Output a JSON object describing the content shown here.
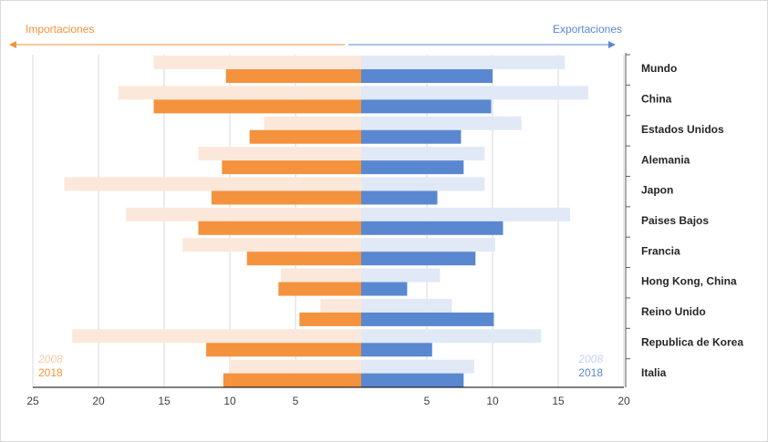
{
  "chart_data": {
    "type": "butterfly-bar",
    "categories": [
      "Mundo",
      "China",
      "Estados Unidos",
      "Alemania",
      "Japon",
      "Paises Bajos",
      "Francia",
      "Hong Kong, China",
      "Reino Unido",
      "Republica de Korea",
      "Italia"
    ],
    "left": {
      "label": "Importaciones",
      "color": "#f4923d",
      "xlim": [
        25,
        0
      ],
      "xticks": [
        25,
        20,
        15,
        10,
        5
      ],
      "series": [
        {
          "name": "2008",
          "color": "#fce8da",
          "values": [
            15.8,
            18.5,
            7.4,
            12.4,
            22.6,
            17.9,
            13.6,
            6.1,
            3.1,
            22.0,
            10
          ]
        },
        {
          "name": "2018",
          "color": "#f4923d",
          "values": [
            10.3,
            15.8,
            8.5,
            10.6,
            11.4,
            12.4,
            8.7,
            6.3,
            4.7,
            11.8,
            10.5
          ]
        }
      ]
    },
    "right": {
      "label": "Exportaciones",
      "color": "#5a88d0",
      "xlim": [
        0,
        20
      ],
      "xticks": [
        5,
        10,
        15,
        20
      ],
      "series": [
        {
          "name": "2008",
          "color": "#e1e9f7",
          "values": [
            15.5,
            17.3,
            12.2,
            9.4,
            9.4,
            15.9,
            10.2,
            6.0,
            6.9,
            13.7,
            8.6
          ]
        },
        {
          "name": "2018",
          "color": "#5a88d0",
          "values": [
            10.0,
            9.9,
            7.6,
            7.8,
            5.8,
            10.8,
            8.7,
            3.5,
            10.1,
            5.4,
            7.8
          ]
        }
      ]
    },
    "grid": true
  }
}
